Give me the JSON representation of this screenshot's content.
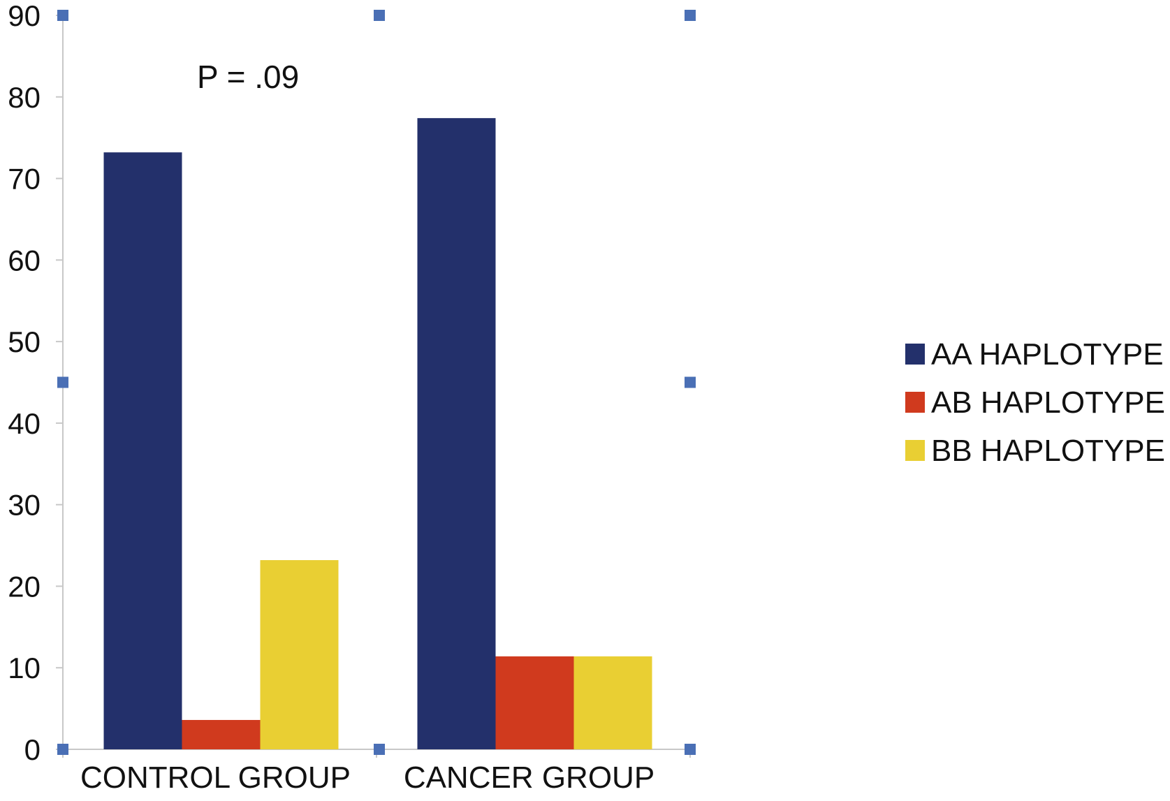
{
  "chart_data": {
    "type": "bar",
    "categories": [
      "CONTROL GROUP",
      "CANCER GROUP"
    ],
    "series": [
      {
        "name": "AA HAPLOTYPE",
        "color": "#23306b",
        "values": [
          73.2,
          77.4
        ]
      },
      {
        "name": "AB HAPLOTYPE",
        "color": "#d03a1e",
        "values": [
          3.6,
          11.4
        ]
      },
      {
        "name": "BB HAPLOTYPE",
        "color": "#e9cf33",
        "values": [
          23.2,
          11.4
        ]
      }
    ],
    "ylim": [
      0,
      90
    ],
    "yticks": [
      "0",
      "10",
      "20",
      "30",
      "40",
      "50",
      "60",
      "70",
      "80",
      "90"
    ],
    "annotation": "P = .09",
    "legend": "right",
    "grid": false,
    "marker_color": "#4a6fb5"
  }
}
